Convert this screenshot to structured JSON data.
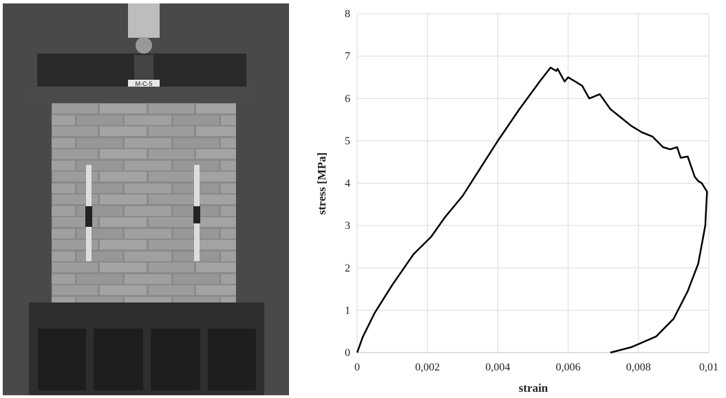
{
  "photo_label": "M-C-5",
  "chart_data": {
    "type": "line",
    "x_label": "strain",
    "y_label": "stress [MPa]",
    "x": [
      0,
      0.00016,
      0.0005,
      0.001,
      0.0016,
      0.0021,
      0.0025,
      0.003,
      0.0035,
      0.004,
      0.0046,
      0.0052,
      0.0055,
      0.00566,
      0.0057,
      0.0059,
      0.006,
      0.0062,
      0.0064,
      0.0066,
      0.0069,
      0.0072,
      0.0075,
      0.0078,
      0.0081,
      0.0084,
      0.0087,
      0.0089,
      0.0091,
      0.0092,
      0.0094,
      0.0096,
      0.0097,
      0.0098,
      0.00995,
      0.0099,
      0.0097,
      0.0094,
      0.009,
      0.0085,
      0.0078,
      0.0072
    ],
    "values": [
      0,
      0.37,
      0.94,
      1.6,
      2.32,
      2.73,
      3.2,
      3.7,
      4.35,
      5.0,
      5.73,
      6.41,
      6.73,
      6.65,
      6.7,
      6.4,
      6.5,
      6.4,
      6.3,
      6.0,
      6.1,
      5.75,
      5.55,
      5.35,
      5.2,
      5.1,
      4.85,
      4.8,
      4.85,
      4.6,
      4.63,
      4.15,
      4.05,
      4.0,
      3.8,
      3.0,
      2.1,
      1.45,
      0.8,
      0.38,
      0.13,
      0
    ],
    "color": "#000000",
    "xlim": [
      0,
      0.01
    ],
    "ylim": [
      0,
      8
    ],
    "xticks": [
      0,
      {
        "value": 0.002,
        "label": "0,002"
      },
      {
        "value": 0.004,
        "label": "0,004"
      },
      {
        "value": 0.006,
        "label": "0,006"
      },
      {
        "value": 0.008,
        "label": "0,008"
      },
      {
        "value": 0.01,
        "label": "0,01"
      }
    ],
    "yticks": [
      0,
      1,
      2,
      3,
      4,
      5,
      6,
      7,
      8
    ],
    "grid": true
  }
}
